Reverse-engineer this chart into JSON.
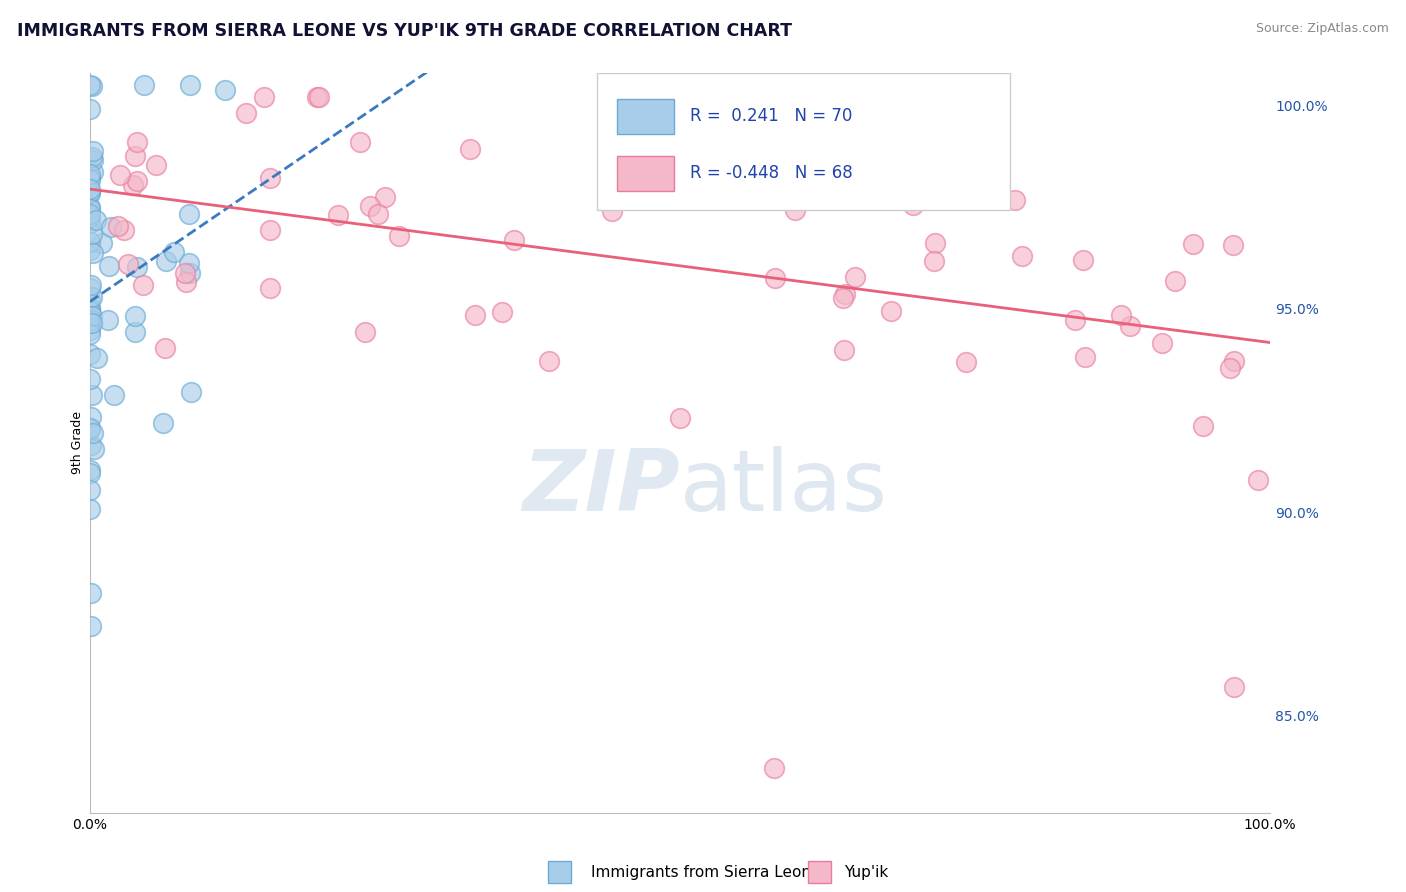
{
  "title": "IMMIGRANTS FROM SIERRA LEONE VS YUP'IK 9TH GRADE CORRELATION CHART",
  "source_text": "Source: ZipAtlas.com",
  "ylabel": "9th Grade",
  "legend_label_1": "Immigrants from Sierra Leone",
  "legend_label_2": "Yup'ik",
  "r1": 0.241,
  "n1": 70,
  "r2": -0.448,
  "n2": 68,
  "color_blue": "#a8cde8",
  "color_blue_edge": "#6aaad4",
  "color_blue_line": "#3a7bbf",
  "color_pink": "#f4b8c8",
  "color_pink_edge": "#e87da0",
  "color_pink_line": "#e8607a",
  "xlim": [
    0.0,
    1.0
  ],
  "ylim_low": 0.826,
  "ylim_high": 1.008,
  "ytick_values": [
    0.85,
    0.9,
    0.95,
    1.0
  ],
  "ytick_labels": [
    "85.0%",
    "90.0%",
    "95.0%",
    "100.0%"
  ],
  "watermark_text": "ZIPatlas",
  "background_color": "#ffffff",
  "grid_color": "#cccccc",
  "title_fontsize": 12.5,
  "axis_label_fontsize": 9,
  "tick_fontsize": 10,
  "legend_fontsize": 12
}
